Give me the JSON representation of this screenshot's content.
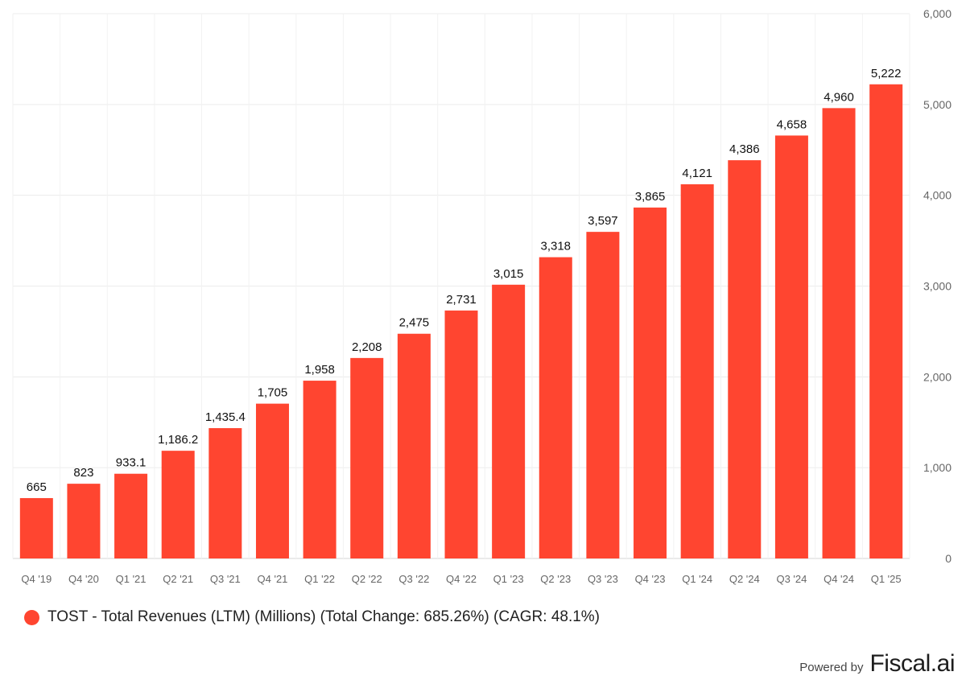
{
  "chart_data": {
    "type": "bar",
    "categories": [
      "Q4 '19",
      "Q4 '20",
      "Q1 '21",
      "Q2 '21",
      "Q3 '21",
      "Q4 '21",
      "Q1 '22",
      "Q2 '22",
      "Q3 '22",
      "Q4 '22",
      "Q1 '23",
      "Q2 '23",
      "Q3 '23",
      "Q4 '23",
      "Q1 '24",
      "Q2 '24",
      "Q3 '24",
      "Q4 '24",
      "Q1 '25"
    ],
    "values": [
      665,
      823,
      933.1,
      1186.2,
      1435.4,
      1705,
      1958,
      2208,
      2475,
      2731,
      3015,
      3318,
      3597,
      3865,
      4121,
      4386,
      4658,
      4960,
      5222
    ],
    "value_labels": [
      "665",
      "823",
      "933.1",
      "1,186.2",
      "1,435.4",
      "1,705",
      "1,958",
      "2,208",
      "2,475",
      "2,731",
      "3,015",
      "3,318",
      "3,597",
      "3,865",
      "4,121",
      "4,386",
      "4,658",
      "4,960",
      "5,222"
    ],
    "ylim": [
      0,
      6000
    ],
    "yticks": [
      0,
      1000,
      2000,
      3000,
      4000,
      5000,
      6000
    ],
    "ytick_labels": [
      "0",
      "1,000",
      "2,000",
      "3,000",
      "4,000",
      "5,000",
      "6,000"
    ],
    "y_axis_side": "right",
    "grid": true,
    "bar_color": "#ff4530",
    "legend_placement": "bottom-left"
  },
  "legend": {
    "text": "TOST - Total Revenues (LTM) (Millions) (Total Change: 685.26%) (CAGR: 48.1%)",
    "color": "#ff4530"
  },
  "footer": {
    "powered_by": "Powered by",
    "brand": "Fiscal.ai"
  }
}
